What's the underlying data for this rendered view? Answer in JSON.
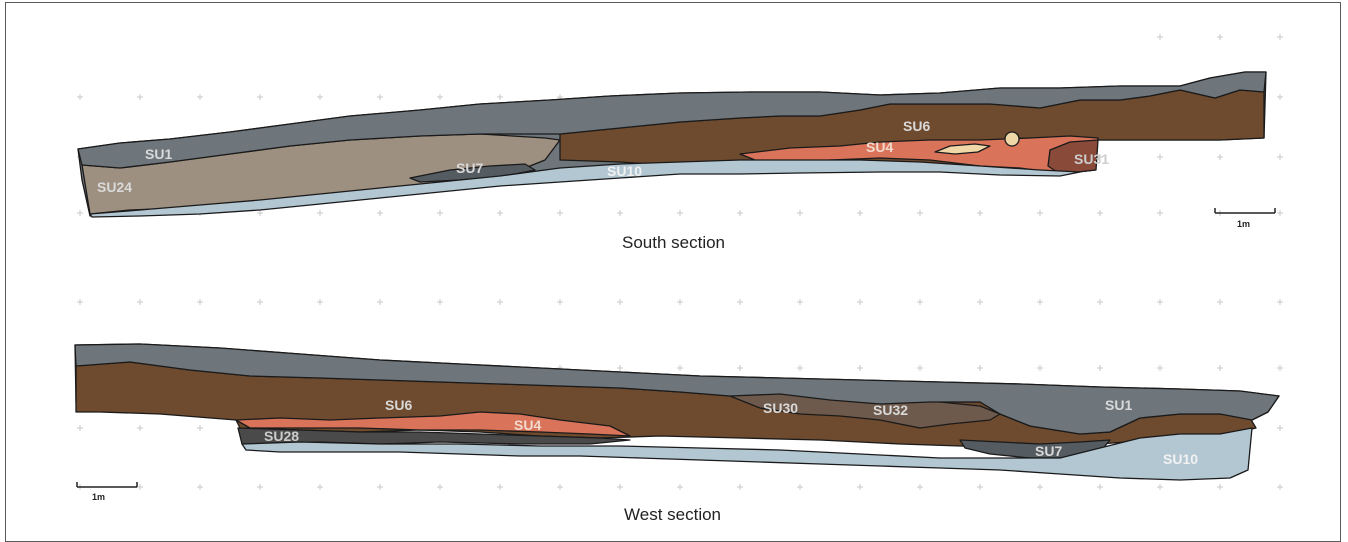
{
  "sections": [
    {
      "title": "South section",
      "scale_label": "1m",
      "units": [
        {
          "label": "SU1"
        },
        {
          "label": "SU24"
        },
        {
          "label": "SU7"
        },
        {
          "label": "SU10"
        },
        {
          "label": "SU6"
        },
        {
          "label": "SU4"
        },
        {
          "label": "SU31"
        }
      ]
    },
    {
      "title": "West section",
      "scale_label": "1m",
      "units": [
        {
          "label": "SU6"
        },
        {
          "label": "SU28"
        },
        {
          "label": "SU4"
        },
        {
          "label": "SU30"
        },
        {
          "label": "SU32"
        },
        {
          "label": "SU1"
        },
        {
          "label": "SU7"
        },
        {
          "label": "SU10"
        }
      ]
    }
  ],
  "colors": {
    "su1_grey": "#6e767c",
    "su6_brown": "#6e4a2e",
    "su24_tan": "#9e9080",
    "su10_lightblue": "#b3c7d3",
    "su4_red": "#d9735a",
    "su7_dark": "#545b61",
    "su30_su32_greybrown": "#6e5a4c",
    "su28_dark": "#4a4a4a",
    "label_light": "#d9d9d9",
    "grid": "#c8c8c8"
  }
}
